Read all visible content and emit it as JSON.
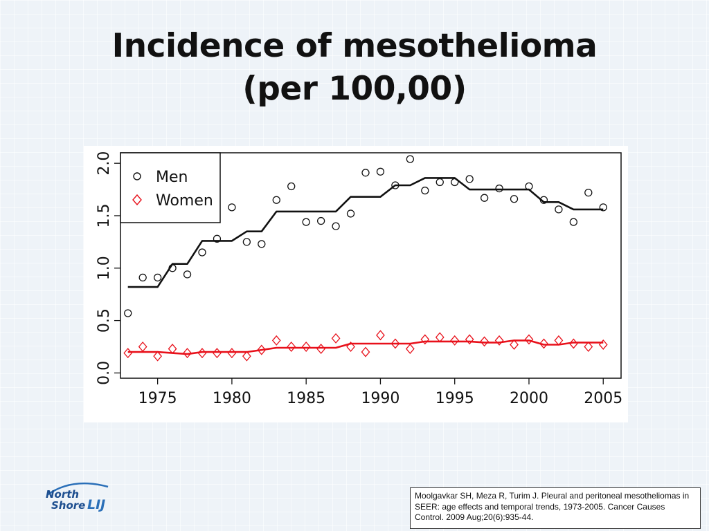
{
  "slide": {
    "title_line1": "Incidence of mesothelioma",
    "title_line2": "(per 100,00)",
    "logo_word1": "North",
    "logo_word2": "Shore",
    "logo_word3": "LIJ",
    "citation": "Moolgavkar SH, Meza R, Turim J. Pleural and peritoneal mesotheliomas in SEER: age effects and temporal trends, 1973-2005. Cancer Causes Control. 2009 Aug;20(6):935-44."
  },
  "colors": {
    "men": "#111111",
    "women": "#e8101a"
  },
  "chart_data": {
    "type": "scatter",
    "title": "",
    "xlabel": "",
    "ylabel": "",
    "xlim": [
      1972.5,
      2006.2
    ],
    "ylim": [
      -0.05,
      2.1
    ],
    "xticks": [
      1975,
      1980,
      1985,
      1990,
      1995,
      2000,
      2005
    ],
    "xtick_labels": [
      "1975",
      "1980",
      "1985",
      "1990",
      "1995",
      "2000",
      "2005"
    ],
    "yticks": [
      0,
      0.5,
      1.0,
      1.5,
      2.0
    ],
    "ytick_labels": [
      "0.0",
      "0.5",
      "1.0",
      "1.5",
      "2.0"
    ],
    "legend_position": "top-left",
    "series": [
      {
        "name": "Men",
        "marker": "circle",
        "x": [
          1973,
          1974,
          1975,
          1976,
          1977,
          1978,
          1979,
          1980,
          1981,
          1982,
          1983,
          1984,
          1985,
          1986,
          1987,
          1988,
          1989,
          1990,
          1991,
          1992,
          1993,
          1994,
          1995,
          1996,
          1997,
          1998,
          1999,
          2000,
          2001,
          2002,
          2003,
          2004,
          2005
        ],
        "points": [
          0.57,
          0.91,
          0.91,
          1.0,
          0.94,
          1.15,
          1.28,
          1.58,
          1.25,
          1.23,
          1.65,
          1.78,
          1.44,
          1.45,
          1.4,
          1.52,
          1.91,
          1.92,
          1.79,
          2.04,
          1.74,
          1.82,
          1.82,
          1.85,
          1.67,
          1.76,
          1.66,
          1.78,
          1.65,
          1.56,
          1.44,
          1.72,
          1.58
        ],
        "fit": [
          0.82,
          0.82,
          0.82,
          1.04,
          1.04,
          1.26,
          1.26,
          1.26,
          1.35,
          1.35,
          1.54,
          1.54,
          1.54,
          1.54,
          1.54,
          1.68,
          1.68,
          1.68,
          1.79,
          1.79,
          1.86,
          1.86,
          1.86,
          1.75,
          1.75,
          1.75,
          1.75,
          1.75,
          1.63,
          1.63,
          1.56,
          1.56,
          1.56
        ]
      },
      {
        "name": "Women",
        "marker": "diamond",
        "x": [
          1973,
          1974,
          1975,
          1976,
          1977,
          1978,
          1979,
          1980,
          1981,
          1982,
          1983,
          1984,
          1985,
          1986,
          1987,
          1988,
          1989,
          1990,
          1991,
          1992,
          1993,
          1994,
          1995,
          1996,
          1997,
          1998,
          1999,
          2000,
          2001,
          2002,
          2003,
          2004,
          2005
        ],
        "points": [
          0.19,
          0.25,
          0.16,
          0.23,
          0.19,
          0.19,
          0.19,
          0.19,
          0.16,
          0.22,
          0.31,
          0.25,
          0.25,
          0.23,
          0.33,
          0.25,
          0.2,
          0.36,
          0.28,
          0.23,
          0.32,
          0.34,
          0.31,
          0.32,
          0.3,
          0.31,
          0.27,
          0.32,
          0.28,
          0.31,
          0.28,
          0.25,
          0.27
        ],
        "fit": [
          0.2,
          0.2,
          0.2,
          0.19,
          0.18,
          0.2,
          0.2,
          0.2,
          0.2,
          0.22,
          0.24,
          0.24,
          0.24,
          0.24,
          0.24,
          0.28,
          0.28,
          0.28,
          0.28,
          0.28,
          0.3,
          0.3,
          0.3,
          0.3,
          0.29,
          0.29,
          0.31,
          0.31,
          0.27,
          0.27,
          0.29,
          0.29,
          0.29
        ]
      }
    ]
  }
}
